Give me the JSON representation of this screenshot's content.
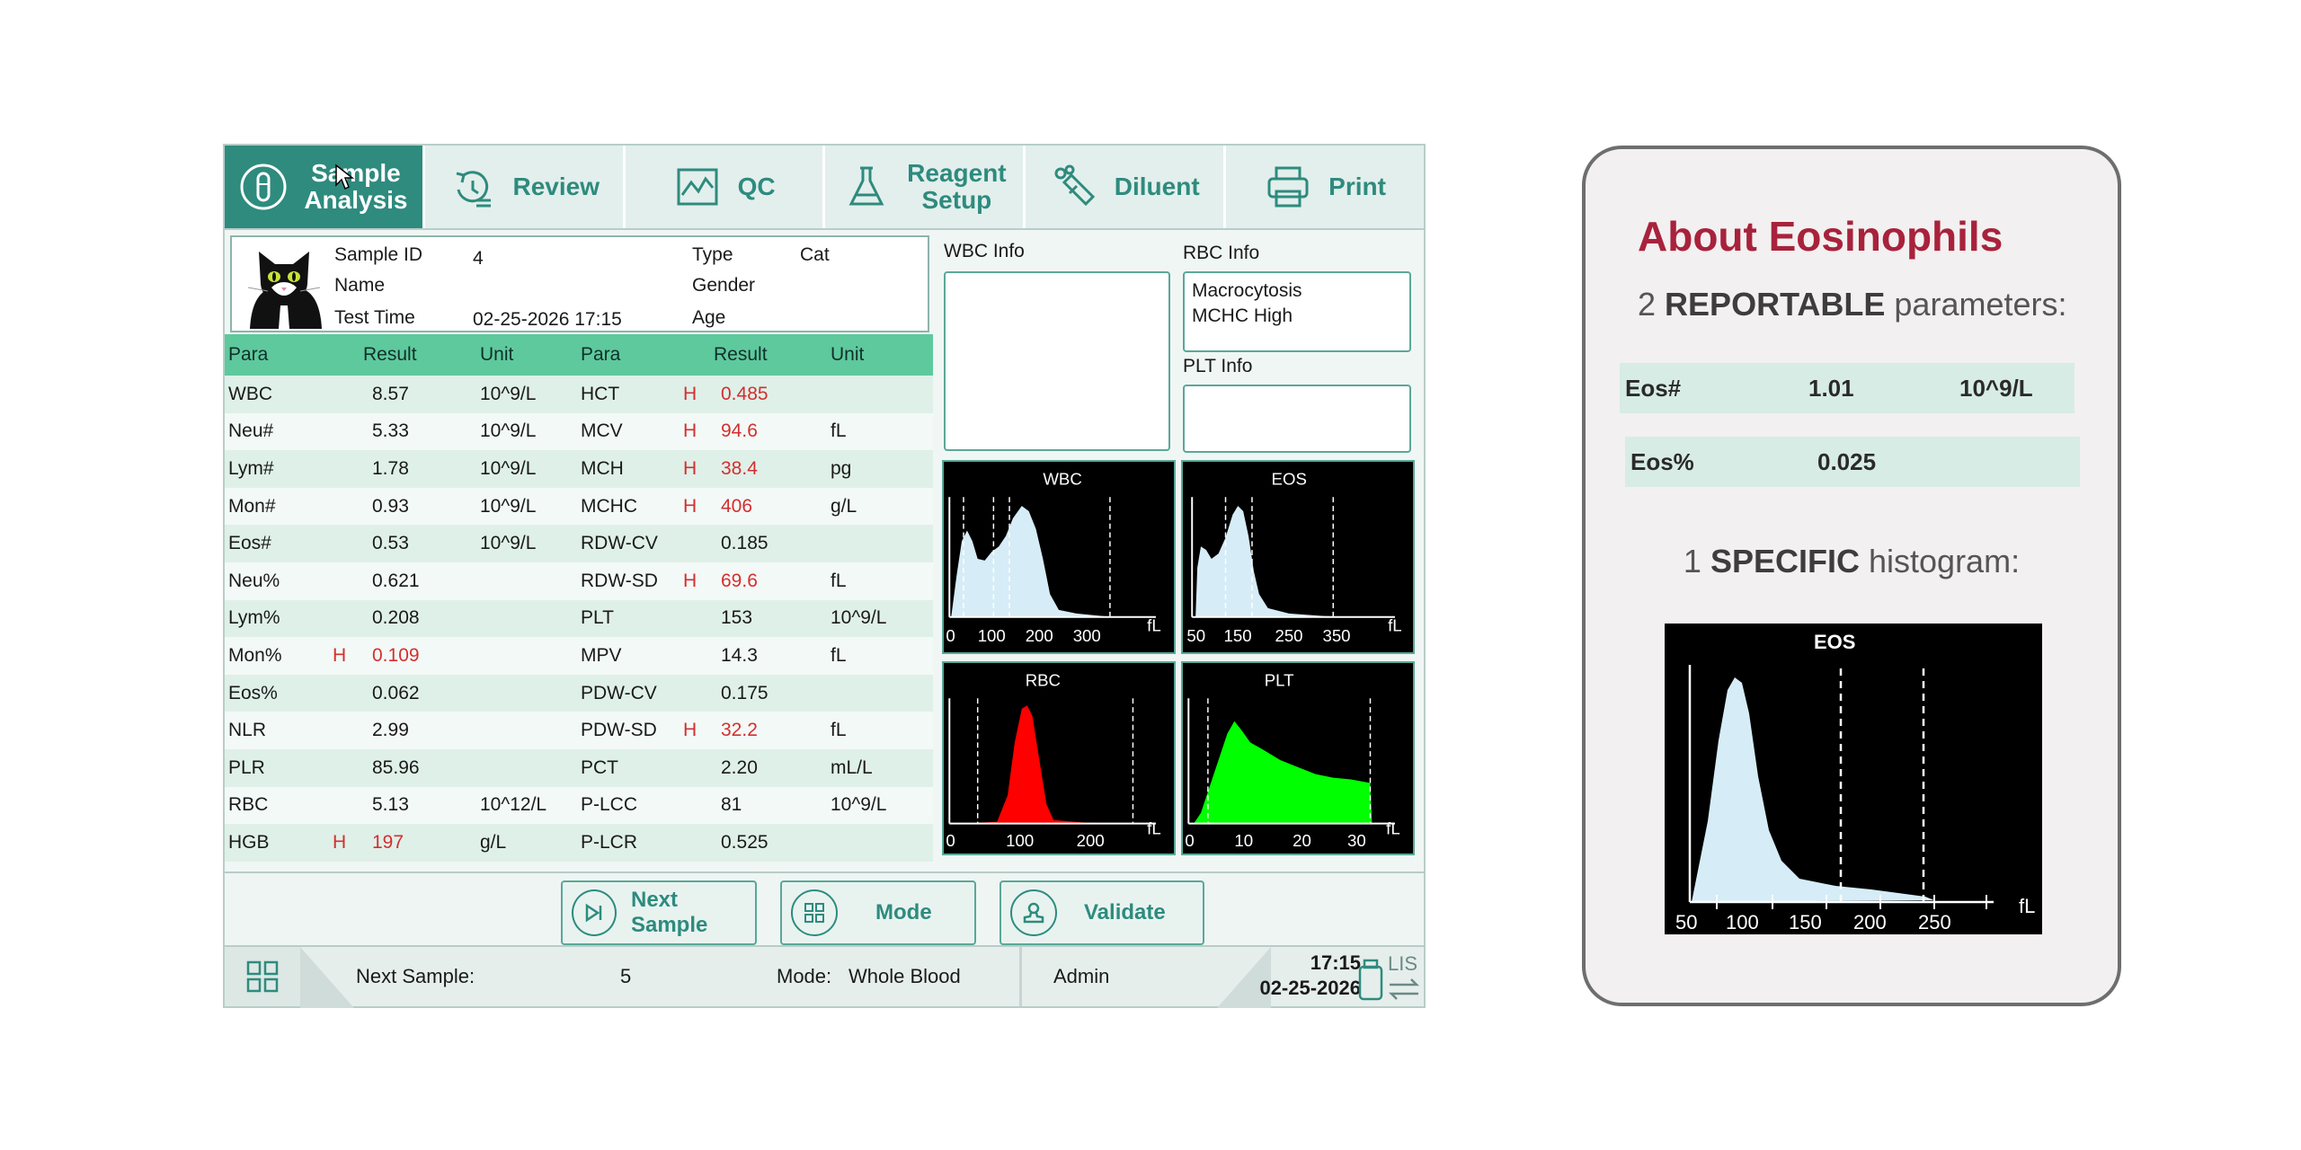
{
  "tabs": [
    {
      "label_line1": "Sample",
      "label_line2": "Analysis",
      "icon": "tube-icon",
      "active": true
    },
    {
      "label_line1": "Review",
      "label_line2": "",
      "icon": "history-icon",
      "active": false
    },
    {
      "label_line1": "QC",
      "label_line2": "",
      "icon": "chart-icon",
      "active": false
    },
    {
      "label_line1": "Reagent",
      "label_line2": "Setup",
      "icon": "flask-icon",
      "active": false
    },
    {
      "label_line1": "Diluent",
      "label_line2": "",
      "icon": "diluent-icon",
      "active": false
    },
    {
      "label_line1": "Print",
      "label_line2": "",
      "icon": "printer-icon",
      "active": false
    }
  ],
  "sample": {
    "id_label": "Sample ID",
    "id": "4",
    "name_label": "Name",
    "name": "",
    "time_label": "Test Time",
    "time": "02-25-2026 17:15",
    "type_label": "Type",
    "type": "Cat",
    "gender_label": "Gender",
    "gender": "",
    "age_label": "Age",
    "age": ""
  },
  "results_header": [
    "Para",
    "Result",
    "Unit",
    "Para",
    "Result",
    "Unit"
  ],
  "results": [
    {
      "p1": "WBC",
      "f1": "",
      "r1": "8.57",
      "u1": "10^9/L",
      "p2": "HCT",
      "f2": "H",
      "r2": "0.485",
      "u2": ""
    },
    {
      "p1": "Neu#",
      "f1": "",
      "r1": "5.33",
      "u1": "10^9/L",
      "p2": "MCV",
      "f2": "H",
      "r2": "94.6",
      "u2": "fL"
    },
    {
      "p1": "Lym#",
      "f1": "",
      "r1": "1.78",
      "u1": "10^9/L",
      "p2": "MCH",
      "f2": "H",
      "r2": "38.4",
      "u2": "pg"
    },
    {
      "p1": "Mon#",
      "f1": "",
      "r1": "0.93",
      "u1": "10^9/L",
      "p2": "MCHC",
      "f2": "H",
      "r2": "406",
      "u2": "g/L"
    },
    {
      "p1": "Eos#",
      "f1": "",
      "r1": "0.53",
      "u1": "10^9/L",
      "p2": "RDW-CV",
      "f2": "",
      "r2": "0.185",
      "u2": ""
    },
    {
      "p1": "Neu%",
      "f1": "",
      "r1": "0.621",
      "u1": "",
      "p2": "RDW-SD",
      "f2": "H",
      "r2": "69.6",
      "u2": "fL"
    },
    {
      "p1": "Lym%",
      "f1": "",
      "r1": "0.208",
      "u1": "",
      "p2": "PLT",
      "f2": "",
      "r2": "153",
      "u2": "10^9/L"
    },
    {
      "p1": "Mon%",
      "f1": "H",
      "r1": "0.109",
      "u1": "",
      "p2": "MPV",
      "f2": "",
      "r2": "14.3",
      "u2": "fL"
    },
    {
      "p1": "Eos%",
      "f1": "",
      "r1": "0.062",
      "u1": "",
      "p2": "PDW-CV",
      "f2": "",
      "r2": "0.175",
      "u2": ""
    },
    {
      "p1": "NLR",
      "f1": "",
      "r1": "2.99",
      "u1": "",
      "p2": "PDW-SD",
      "f2": "H",
      "r2": "32.2",
      "u2": "fL"
    },
    {
      "p1": "PLR",
      "f1": "",
      "r1": "85.96",
      "u1": "",
      "p2": "PCT",
      "f2": "",
      "r2": "2.20",
      "u2": "mL/L"
    },
    {
      "p1": "RBC",
      "f1": "",
      "r1": "5.13",
      "u1": "10^12/L",
      "p2": "P-LCC",
      "f2": "",
      "r2": "81",
      "u2": "10^9/L"
    },
    {
      "p1": "HGB",
      "f1": "H",
      "r1": "197",
      "u1": "g/L",
      "p2": "P-LCR",
      "f2": "",
      "r2": "0.525",
      "u2": ""
    }
  ],
  "info_panels": {
    "wbc_label": "WBC Info",
    "wbc_text": "",
    "rbc_label": "RBC Info",
    "rbc_line1": "Macrocytosis",
    "rbc_line2": "MCHC High",
    "plt_label": "PLT Info",
    "plt_text": ""
  },
  "histograms": {
    "wbc": {
      "title": "WBC",
      "unit": "fL",
      "ticks": [
        "0",
        "100",
        "200",
        "300"
      ],
      "color": "#d6ecf6"
    },
    "eos": {
      "title": "EOS",
      "unit": "fL",
      "ticks": [
        "50",
        "150",
        "250",
        "350"
      ],
      "color": "#d6ecf6"
    },
    "rbc": {
      "title": "RBC",
      "unit": "fL",
      "ticks": [
        "0",
        "100",
        "200"
      ],
      "color": "#ff0000"
    },
    "plt": {
      "title": "PLT",
      "unit": "fL",
      "ticks": [
        "0",
        "10",
        "20",
        "30"
      ],
      "color": "#00ff00"
    }
  },
  "actions": {
    "next_sample": "Next Sample",
    "mode": "Mode",
    "validate": "Validate"
  },
  "status": {
    "next_label": "Next Sample:",
    "next_value": "5",
    "mode_label": "Mode:",
    "mode_value": "Whole Blood",
    "user": "Admin",
    "time": "17:15",
    "date": "02-25-2026",
    "lis": "LIS"
  },
  "about": {
    "title": "About Eosinophils",
    "sub_num": "2",
    "sub_bold": "REPORTABLE",
    "sub_rest": "parameters:",
    "rows": [
      {
        "name": "Eos#",
        "value": "1.01",
        "unit": "10^9/L"
      },
      {
        "name": "Eos%",
        "value": "0.025",
        "unit": ""
      }
    ],
    "sub2_num": "1",
    "sub2_bold": "SPECIFIC",
    "sub2_rest": "histogram:",
    "hist": {
      "title": "EOS",
      "unit": "fL",
      "ticks": [
        "50",
        "100",
        "150",
        "200",
        "250"
      ]
    }
  },
  "colors": {
    "accent": "#2e8b7e",
    "header_green": "#5ec99d",
    "high_flag": "#d32f2f",
    "about_title": "#a8223c"
  }
}
